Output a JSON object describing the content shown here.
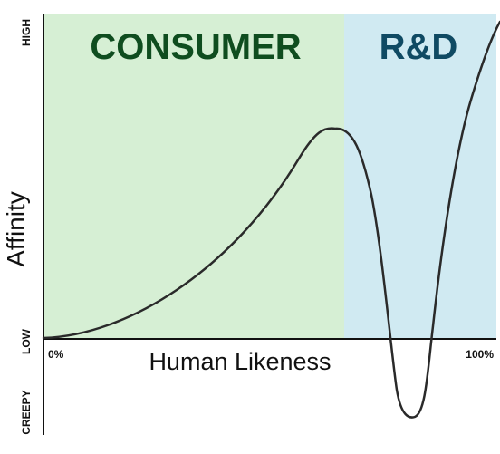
{
  "regions": {
    "consumer": {
      "label": "CONSUMER",
      "color": "#d6efd4",
      "text_color": "#0f4d1f"
    },
    "rd": {
      "label": "R&D",
      "color": "#d0eaf2",
      "text_color": "#0f4a63"
    }
  },
  "axes": {
    "y_title": "Affinity",
    "x_title": "Human Likeness",
    "y_high": "HIGH",
    "y_low": "LOW",
    "y_creepy": "CREEPY",
    "x_start": "0%",
    "x_end": "100%"
  },
  "chart_data": {
    "type": "line",
    "xlabel": "Human Likeness",
    "ylabel": "Affinity",
    "series": [
      {
        "values": []
      }
    ]
  }
}
